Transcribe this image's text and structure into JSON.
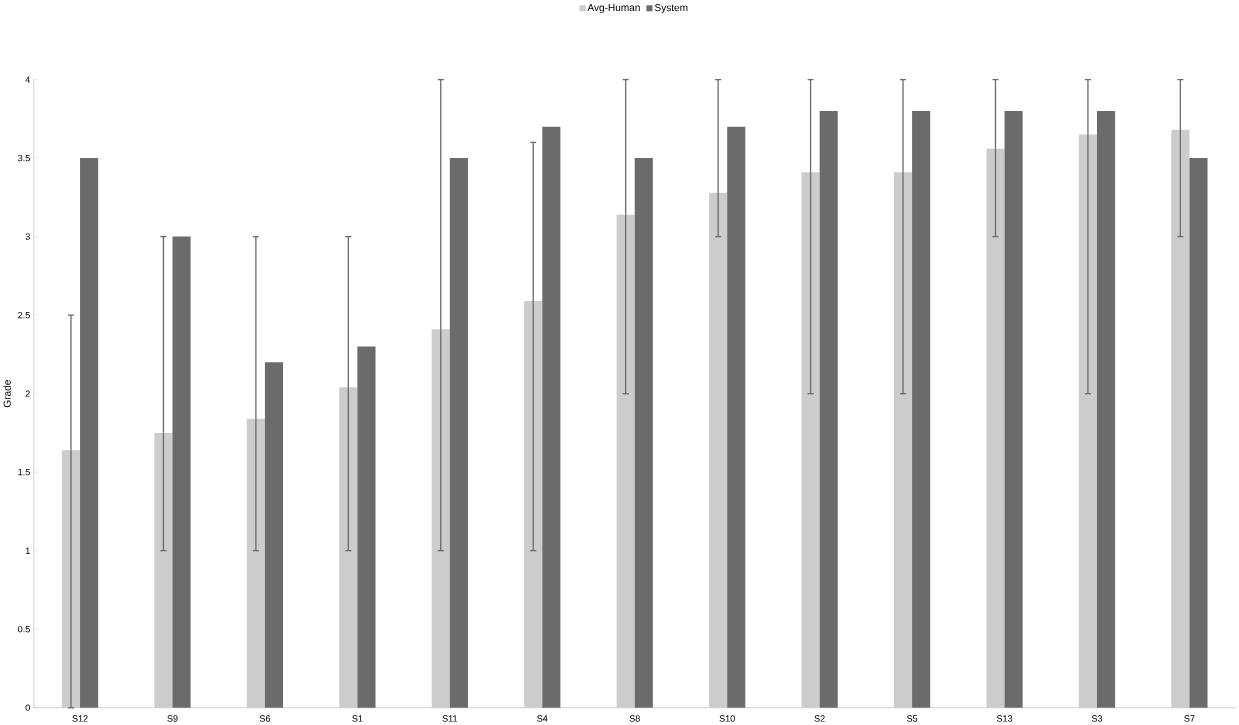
{
  "chart_data": {
    "type": "bar",
    "ylabel": "Grade",
    "categories": [
      "S12",
      "S9",
      "S6",
      "S1",
      "S11",
      "S4",
      "S8",
      "S10",
      "S2",
      "S5",
      "S13",
      "S3",
      "S7"
    ],
    "series": [
      {
        "name": "Avg-Human",
        "color": "#cccccc",
        "values": [
          1.64,
          1.75,
          1.84,
          2.04,
          2.41,
          2.59,
          3.14,
          3.28,
          3.41,
          3.41,
          3.56,
          3.65,
          3.68
        ],
        "errors": [
          [
            0,
            2.5
          ],
          [
            1,
            3
          ],
          [
            1,
            3
          ],
          [
            1,
            3
          ],
          [
            1,
            4
          ],
          [
            1,
            3.6
          ],
          [
            2,
            4
          ],
          [
            3,
            4
          ],
          [
            2,
            4
          ],
          [
            2,
            4
          ],
          [
            3,
            4
          ],
          [
            2,
            4
          ],
          [
            3,
            4
          ]
        ]
      },
      {
        "name": "System",
        "color": "#6b6b6b",
        "values": [
          3.5,
          3.0,
          2.2,
          2.3,
          3.5,
          3.7,
          3.5,
          3.7,
          3.8,
          3.8,
          3.8,
          3.8,
          3.5
        ]
      }
    ],
    "ylim": [
      0,
      4
    ],
    "yticks": [
      0,
      0.5,
      1,
      1.5,
      2,
      2.5,
      3,
      3.5,
      4
    ],
    "grid": false,
    "legend": "top"
  }
}
